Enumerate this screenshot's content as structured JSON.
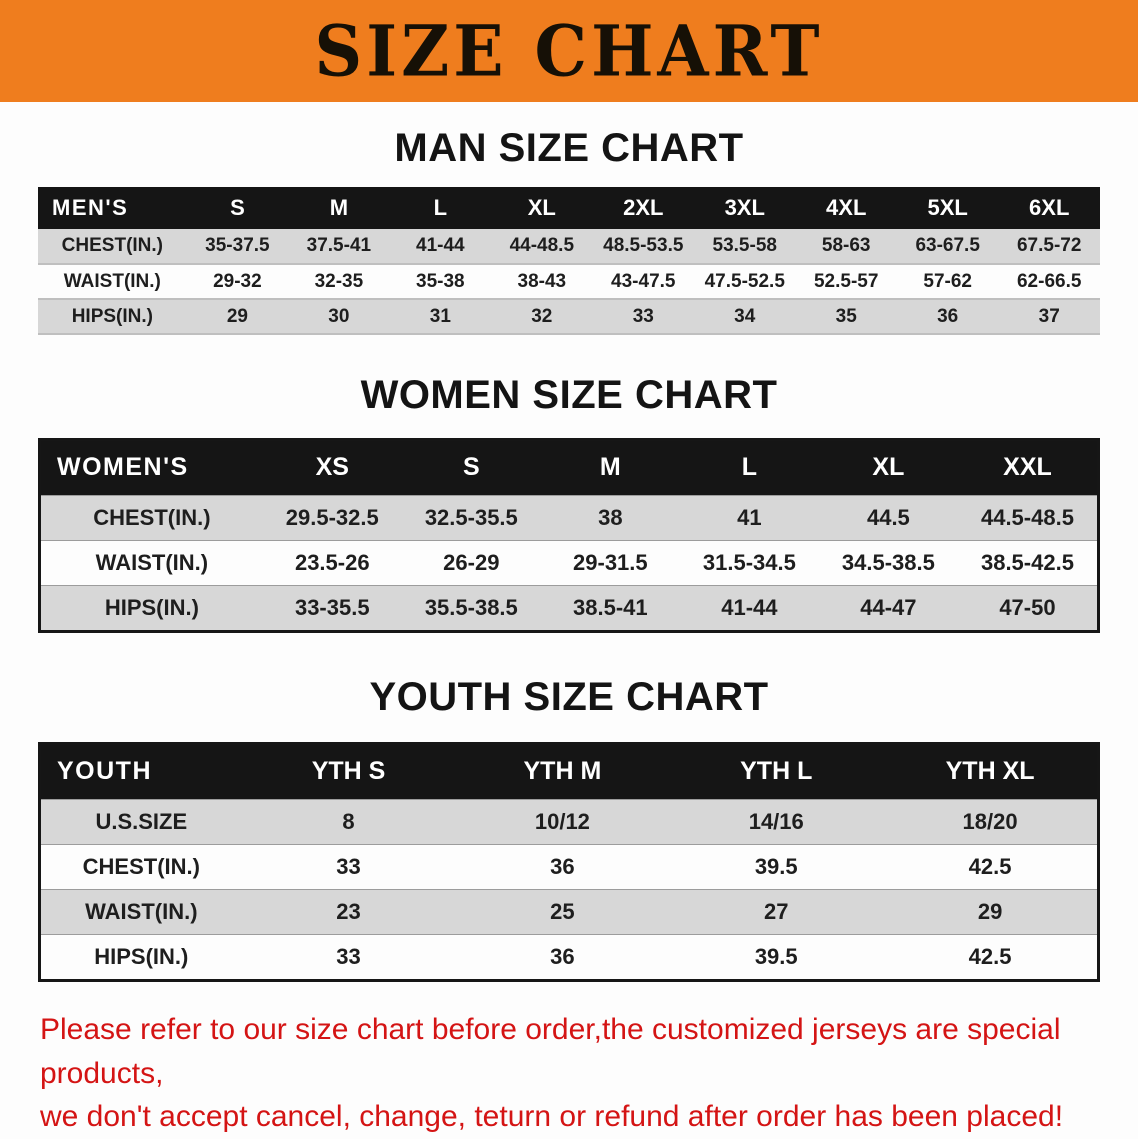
{
  "banner": {
    "title": "SIZE CHART"
  },
  "colors": {
    "banner_orange": "#EF7D1E",
    "header_black": "#151515",
    "row_gray": "#D7D7D7",
    "footer_red": "#D41414",
    "text_black": "#1B1B1B"
  },
  "tables": {
    "men": {
      "title": "MAN SIZE CHART",
      "corner": "MEN'S",
      "columns": [
        "S",
        "M",
        "L",
        "XL",
        "2XL",
        "3XL",
        "4XL",
        "5XL",
        "6XL"
      ],
      "rows": [
        {
          "label": "CHEST(IN.)",
          "values": [
            "35-37.5",
            "37.5-41",
            "41-44",
            "44-48.5",
            "48.5-53.5",
            "53.5-58",
            "58-63",
            "63-67.5",
            "67.5-72"
          ]
        },
        {
          "label": "WAIST(IN.)",
          "values": [
            "29-32",
            "32-35",
            "35-38",
            "38-43",
            "43-47.5",
            "47.5-52.5",
            "52.5-57",
            "57-62",
            "62-66.5"
          ]
        },
        {
          "label": "HIPS(IN.)",
          "values": [
            "29",
            "30",
            "31",
            "32",
            "33",
            "34",
            "35",
            "36",
            "37"
          ]
        }
      ]
    },
    "women": {
      "title": "WOMEN SIZE CHART",
      "corner": "WOMEN'S",
      "columns": [
        "XS",
        "S",
        "M",
        "L",
        "XL",
        "XXL"
      ],
      "rows": [
        {
          "label": "CHEST(IN.)",
          "values": [
            "29.5-32.5",
            "32.5-35.5",
            "38",
            "41",
            "44.5",
            "44.5-48.5"
          ]
        },
        {
          "label": "WAIST(IN.)",
          "values": [
            "23.5-26",
            "26-29",
            "29-31.5",
            "31.5-34.5",
            "34.5-38.5",
            "38.5-42.5"
          ]
        },
        {
          "label": "HIPS(IN.)",
          "values": [
            "33-35.5",
            "35.5-38.5",
            "38.5-41",
            "41-44",
            "44-47",
            "47-50"
          ]
        }
      ]
    },
    "youth": {
      "title": "YOUTH SIZE CHART",
      "corner": "YOUTH",
      "columns": [
        "YTH S",
        "YTH M",
        "YTH L",
        "YTH XL"
      ],
      "rows": [
        {
          "label": "U.S.SIZE",
          "values": [
            "8",
            "10/12",
            "14/16",
            "18/20"
          ]
        },
        {
          "label": "CHEST(IN.)",
          "values": [
            "33",
            "36",
            "39.5",
            "42.5"
          ]
        },
        {
          "label": "WAIST(IN.)",
          "values": [
            "23",
            "25",
            "27",
            "29"
          ]
        },
        {
          "label": "HIPS(IN.)",
          "values": [
            "33",
            "36",
            "39.5",
            "42.5"
          ]
        }
      ]
    }
  },
  "footer": {
    "line1": "Please refer to our size chart before order,the customized jerseys are special products,",
    "line2": "we don't accept cancel, change, teturn or refund after order has been placed!"
  }
}
